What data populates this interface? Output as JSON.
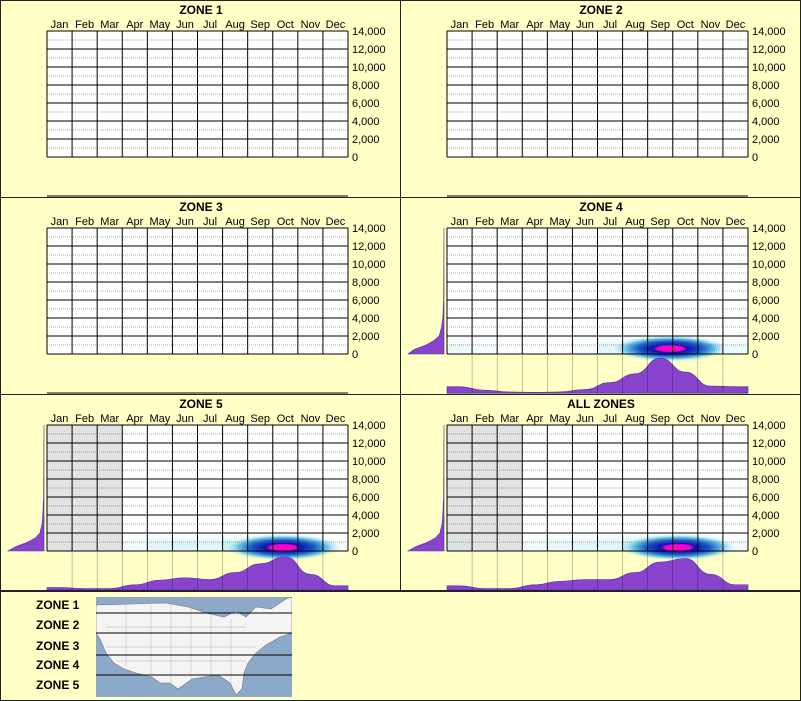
{
  "months": [
    "Jan",
    "Feb",
    "Mar",
    "Apr",
    "May",
    "Jun",
    "Jul",
    "Aug",
    "Sep",
    "Oct",
    "Nov",
    "Dec"
  ],
  "yticks": [
    "14,000",
    "12,000",
    "10,000",
    "8,000",
    "6,000",
    "4,000",
    "2,000",
    "0"
  ],
  "chart_data": [
    {
      "type": "heatmap",
      "title": "ZONE 1",
      "categories": [
        "Jan",
        "Feb",
        "Mar",
        "Apr",
        "May",
        "Jun",
        "Jul",
        "Aug",
        "Sep",
        "Oct",
        "Nov",
        "Dec"
      ],
      "ylim": [
        0,
        14000
      ],
      "has_data": false,
      "monthly_profile": [
        0,
        0,
        0,
        0,
        0,
        0,
        0,
        0,
        0,
        0,
        0,
        0
      ],
      "elevation_profile": [],
      "hot": [],
      "shaded_months": []
    },
    {
      "type": "heatmap",
      "title": "ZONE 2",
      "categories": [
        "Jan",
        "Feb",
        "Mar",
        "Apr",
        "May",
        "Jun",
        "Jul",
        "Aug",
        "Sep",
        "Oct",
        "Nov",
        "Dec"
      ],
      "ylim": [
        0,
        14000
      ],
      "has_data": false,
      "monthly_profile": [
        0,
        0,
        0,
        0,
        0,
        0,
        0,
        0,
        0,
        0,
        0,
        0
      ],
      "elevation_profile": [],
      "hot": [],
      "shaded_months": []
    },
    {
      "type": "heatmap",
      "title": "ZONE 3",
      "categories": [
        "Jan",
        "Feb",
        "Mar",
        "Apr",
        "May",
        "Jun",
        "Jul",
        "Aug",
        "Sep",
        "Oct",
        "Nov",
        "Dec"
      ],
      "ylim": [
        0,
        14000
      ],
      "has_data": false,
      "monthly_profile": [
        0,
        0,
        0,
        0,
        0,
        0,
        0,
        0,
        0,
        0,
        0,
        0
      ],
      "elevation_profile": [],
      "hot": [],
      "shaded_months": []
    },
    {
      "type": "heatmap",
      "title": "ZONE 4",
      "categories": [
        "Jan",
        "Feb",
        "Mar",
        "Apr",
        "May",
        "Jun",
        "Jul",
        "Aug",
        "Sep",
        "Oct",
        "Nov",
        "Dec"
      ],
      "ylim": [
        0,
        14000
      ],
      "has_data": true,
      "monthly_profile": [
        0.18,
        0.08,
        0.03,
        0.02,
        0.03,
        0.1,
        0.3,
        0.55,
        1.0,
        0.6,
        0.2,
        0.18
      ],
      "elevation_profile": [
        [
          0,
          0.9
        ],
        [
          500,
          0.75
        ],
        [
          1000,
          0.45
        ],
        [
          1500,
          0.25
        ],
        [
          2000,
          0.12
        ],
        [
          3000,
          0.06
        ],
        [
          4000,
          0.03
        ],
        [
          6000,
          0.01
        ],
        [
          14000,
          0.0
        ]
      ],
      "hot": [
        {
          "month": 8.4,
          "elev": 600,
          "level": 1.0
        }
      ],
      "shaded_months": []
    },
    {
      "type": "heatmap",
      "title": "ZONE 5",
      "categories": [
        "Jan",
        "Feb",
        "Mar",
        "Apr",
        "May",
        "Jun",
        "Jul",
        "Aug",
        "Sep",
        "Oct",
        "Nov",
        "Dec"
      ],
      "ylim": [
        0,
        14000
      ],
      "has_data": true,
      "monthly_profile": [
        0.07,
        0.04,
        0.04,
        0.15,
        0.28,
        0.35,
        0.3,
        0.5,
        0.75,
        0.95,
        0.45,
        0.12
      ],
      "elevation_profile": [
        [
          0,
          0.9
        ],
        [
          500,
          0.7
        ],
        [
          1000,
          0.4
        ],
        [
          1500,
          0.2
        ],
        [
          2000,
          0.1
        ],
        [
          3000,
          0.05
        ],
        [
          4000,
          0.03
        ],
        [
          6000,
          0.01
        ],
        [
          14000,
          0.0
        ]
      ],
      "hot": [
        {
          "month": 8.9,
          "elev": 400,
          "level": 1.0
        }
      ],
      "shaded_months": [
        "Jan",
        "Feb",
        "Mar"
      ]
    },
    {
      "type": "heatmap",
      "title": "ALL ZONES",
      "categories": [
        "Jan",
        "Feb",
        "Mar",
        "Apr",
        "May",
        "Jun",
        "Jul",
        "Aug",
        "Sep",
        "Oct",
        "Nov",
        "Dec"
      ],
      "ylim": [
        0,
        14000
      ],
      "has_data": true,
      "monthly_profile": [
        0.12,
        0.04,
        0.04,
        0.15,
        0.25,
        0.3,
        0.3,
        0.5,
        0.8,
        0.9,
        0.45,
        0.15
      ],
      "elevation_profile": [
        [
          0,
          0.9
        ],
        [
          500,
          0.7
        ],
        [
          1000,
          0.4
        ],
        [
          1500,
          0.2
        ],
        [
          2000,
          0.1
        ],
        [
          3000,
          0.05
        ],
        [
          4000,
          0.03
        ],
        [
          6000,
          0.01
        ],
        [
          14000,
          0.0
        ]
      ],
      "hot": [
        {
          "month": 8.7,
          "elev": 400,
          "level": 1.0
        }
      ],
      "shaded_months": [
        "Jan",
        "Feb",
        "Mar"
      ]
    }
  ],
  "legend": {
    "zones": [
      "ZONE 1",
      "ZONE 2",
      "ZONE 3",
      "ZONE 4",
      "ZONE 5"
    ]
  },
  "colors": {
    "background": "#ffffc6",
    "grid_dark": "#000000",
    "purple": "#8844cc",
    "shade": "#e2e2e2",
    "map_water": "#8ca9c9",
    "map_land": "#f4f4f4"
  }
}
